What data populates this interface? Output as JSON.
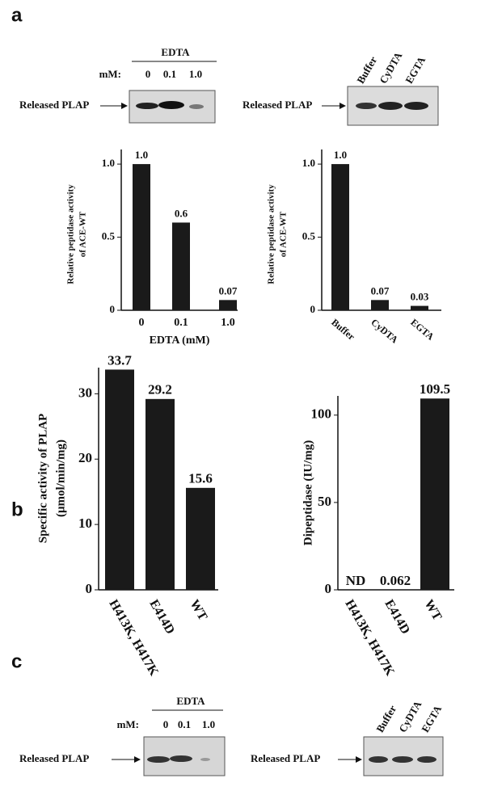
{
  "panel_labels": [
    "a",
    "b",
    "c"
  ],
  "blots": [
    {
      "title": "EDTA",
      "unit": "mM:",
      "lanes": [
        "0",
        "0.1",
        "1.0"
      ],
      "label": "Released PLAP"
    },
    {
      "lanes": [
        "Buffer",
        "CyDTA",
        "EGTA"
      ],
      "label": "Released PLAP"
    },
    {
      "title": "EDTA",
      "unit": "mM:",
      "lanes": [
        "0",
        "0.1",
        "1.0"
      ],
      "label": "Released PLAP"
    },
    {
      "lanes": [
        "Buffer",
        "CyDTA",
        "EGTA"
      ],
      "label": "Released PLAP"
    }
  ],
  "chart_data": [
    {
      "type": "bar",
      "ylabel": [
        "Relative peptidase activity",
        "of ACE-WT"
      ],
      "xlabel": "EDTA (mM)",
      "categories": [
        "0",
        "0.1",
        "1.0"
      ],
      "values": [
        1.0,
        0.6,
        0.07
      ],
      "value_labels": [
        "1.0",
        "0.6",
        "0.07"
      ],
      "color": "#1a1a1a",
      "ylim": [
        0,
        1.1
      ],
      "yticks": [
        0,
        0.5,
        {
          "value": 1,
          "label": "1.0"
        }
      ],
      "grid": false
    },
    {
      "type": "bar",
      "ylabel": [
        "Relative peptidase activity",
        "of ACE-WT"
      ],
      "categories": [
        "Buffer",
        "CyDTA",
        "EGTA"
      ],
      "values": [
        1.0,
        0.07,
        0.03
      ],
      "value_labels": [
        "1.0",
        "0.07",
        "0.03"
      ],
      "color": "#1a1a1a",
      "ylim": [
        0,
        1.1
      ],
      "yticks": [
        0,
        0.5,
        {
          "value": 1,
          "label": "1.0"
        }
      ],
      "grid": false
    },
    {
      "type": "bar",
      "ylabel": [
        "Specific activity of PLAP",
        "(μmol/min/mg)"
      ],
      "categories": [
        "H413K, H417K",
        "E414D",
        "WT"
      ],
      "values": [
        33.7,
        29.2,
        15.6
      ],
      "color": "#1a1a1a",
      "ylim": [
        0,
        34
      ],
      "yticks": [
        0,
        10,
        20,
        30
      ],
      "grid": false
    },
    {
      "type": "bar",
      "ylabel": [
        "Dipeptidase (IU/mg)"
      ],
      "categories": [
        "H413K, H417K",
        "E414D",
        "WT"
      ],
      "values": [
        null,
        0.062,
        109.5
      ],
      "value_labels": [
        "ND",
        "0.062",
        "109.5"
      ],
      "color": "#1a1a1a",
      "ylim": [
        0,
        111
      ],
      "yticks": [
        0,
        50,
        100
      ],
      "grid": false
    }
  ]
}
